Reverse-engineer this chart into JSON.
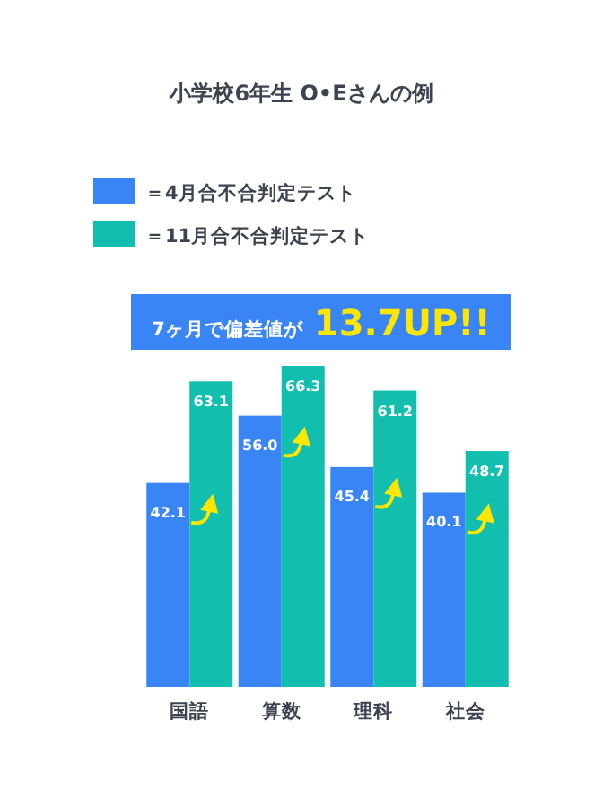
{
  "chart_data": {
    "type": "bar",
    "title": "小学校6年生 O•Eさんの例",
    "annotations": [
      "7ヶ月で偏差値が",
      "13.7UP!!"
    ],
    "categories": [
      "国語",
      "算数",
      "理科",
      "社会"
    ],
    "series": [
      {
        "name": "＝4月合不合判定テスト",
        "color": "#3a85f5",
        "values": [
          42.1,
          56.0,
          45.4,
          40.1
        ],
        "value_labels": [
          "42.1",
          "56.0",
          "45.4",
          "40.1"
        ]
      },
      {
        "name": "＝11月合不合判定テスト",
        "color": "#12bfae",
        "values": [
          63.1,
          66.3,
          61.2,
          48.7
        ],
        "value_labels": [
          "63.1",
          "66.3",
          "61.2",
          "48.7"
        ]
      }
    ],
    "legend": "top left"
  }
}
